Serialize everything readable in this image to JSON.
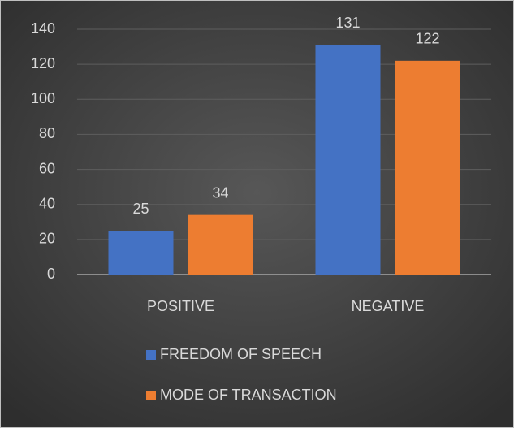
{
  "chart_data": {
    "type": "bar",
    "categories": [
      "POSITIVE",
      "NEGATIVE"
    ],
    "series": [
      {
        "name": "FREEDOM OF SPEECH",
        "color": "#4472c4",
        "values": [
          25,
          131
        ]
      },
      {
        "name": "MODE OF TRANSACTION",
        "color": "#ed7d31",
        "values": [
          34,
          122
        ]
      }
    ],
    "ylim": [
      0,
      140
    ],
    "yticks": [
      0,
      20,
      40,
      60,
      80,
      100,
      120,
      140
    ],
    "grid": true,
    "legend": "bottom"
  }
}
